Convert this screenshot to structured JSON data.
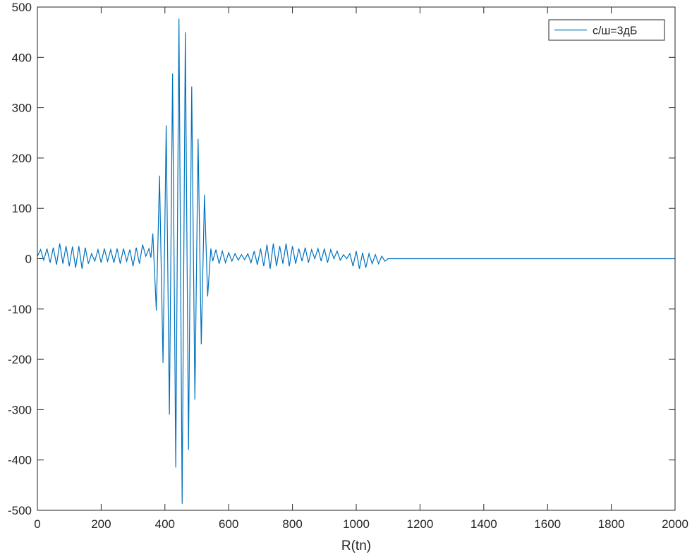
{
  "chart_data": {
    "type": "line",
    "x_label": "R(tn)",
    "x": [
      0,
      10,
      20,
      30,
      40,
      50,
      60,
      70,
      80,
      90,
      100,
      110,
      120,
      130,
      140,
      150,
      160,
      170,
      180,
      190,
      200,
      210,
      220,
      230,
      240,
      250,
      260,
      270,
      280,
      290,
      300,
      310,
      320,
      330,
      340,
      350,
      356,
      362,
      373,
      383,
      394,
      404,
      414,
      424,
      434,
      444,
      454,
      464,
      474,
      484,
      494,
      504,
      514,
      524,
      534,
      544,
      550,
      560,
      570,
      580,
      590,
      600,
      610,
      620,
      630,
      640,
      650,
      660,
      670,
      680,
      690,
      700,
      710,
      720,
      730,
      740,
      750,
      760,
      770,
      780,
      790,
      800,
      810,
      820,
      830,
      840,
      850,
      860,
      870,
      880,
      890,
      900,
      910,
      920,
      930,
      940,
      950,
      960,
      970,
      980,
      990,
      1000,
      1010,
      1020,
      1030,
      1040,
      1050,
      1060,
      1070,
      1080,
      1090,
      1100,
      2000
    ],
    "series": [
      {
        "name": "с/ш=3дБ",
        "color": "#0072bd",
        "values": [
          5,
          18,
          -3,
          20,
          -8,
          22,
          -12,
          30,
          -10,
          25,
          -15,
          24,
          -18,
          25,
          -20,
          22,
          -10,
          10,
          -5,
          18,
          -8,
          20,
          -5,
          18,
          -8,
          20,
          -10,
          20,
          -5,
          18,
          -15,
          22,
          -10,
          28,
          5,
          20,
          2,
          50,
          -103,
          165,
          -207,
          265,
          -310,
          368,
          -415,
          477,
          -487,
          450,
          -380,
          342,
          -280,
          238,
          -170,
          127,
          -75,
          20,
          -5,
          18,
          -10,
          15,
          -8,
          12,
          -5,
          10,
          -3,
          8,
          -2,
          10,
          -8,
          15,
          -12,
          20,
          -15,
          28,
          -20,
          30,
          -15,
          25,
          -10,
          30,
          -15,
          25,
          -10,
          20,
          -5,
          22,
          -8,
          18,
          0,
          20,
          -5,
          20,
          -8,
          18,
          0,
          15,
          -3,
          8,
          0,
          10,
          -15,
          15,
          -20,
          12,
          -18,
          10,
          -10,
          8,
          -10,
          5,
          -5,
          0,
          0
        ]
      }
    ],
    "xlim": [
      0,
      2000
    ],
    "xticks": [
      0,
      200,
      400,
      600,
      800,
      1000,
      1200,
      1400,
      1600,
      1800,
      2000
    ],
    "ylim": [
      -500,
      500
    ],
    "yticks": [
      -500,
      -400,
      -300,
      -200,
      -100,
      0,
      100,
      200,
      300,
      400,
      500
    ],
    "legend": "upper right",
    "grid": false
  }
}
